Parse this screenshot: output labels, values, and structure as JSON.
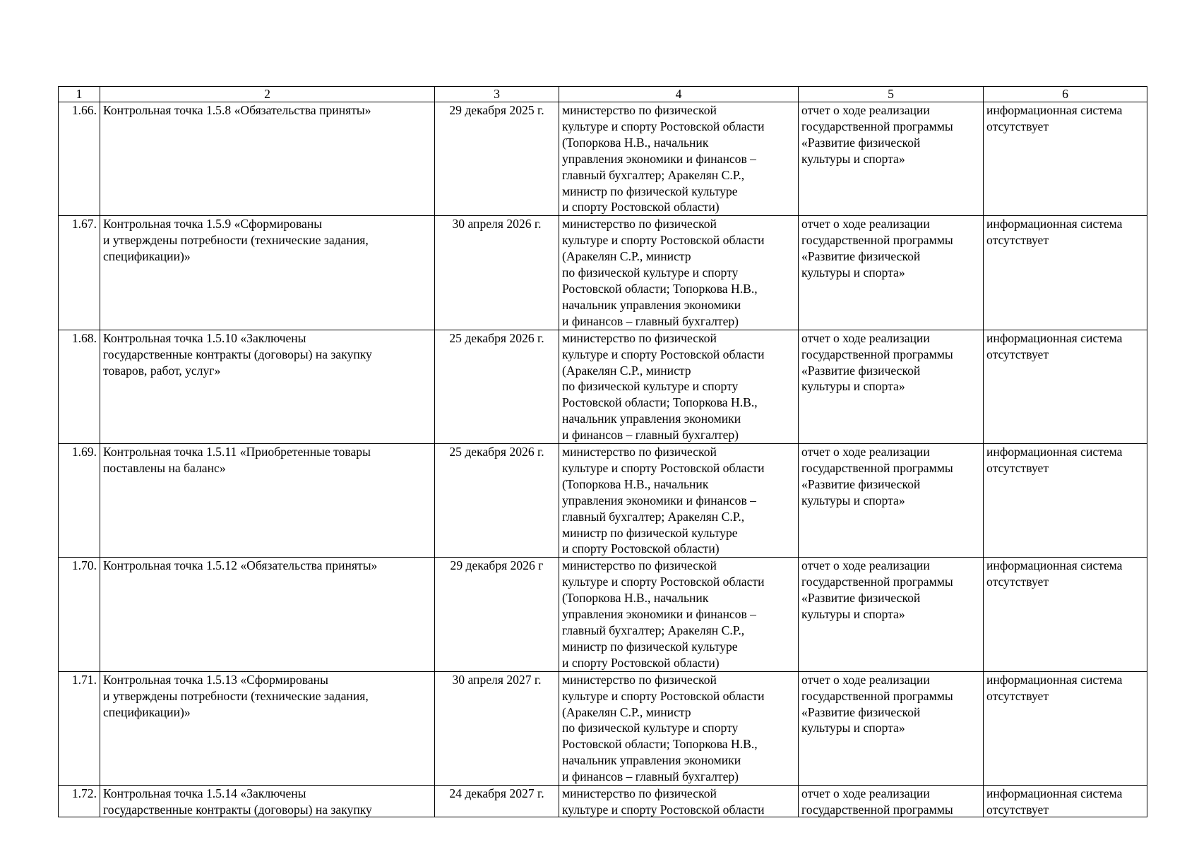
{
  "table": {
    "headers": [
      "1",
      "2",
      "3",
      "4",
      "5",
      "6"
    ],
    "rows": [
      {
        "num": "1.66.",
        "name": "Контрольная точка 1.5.8 «Обязательства приняты»",
        "date": "29 декабря 2025 г.",
        "responsible": "министерство по физической\nкультуре и спорту Ростовской области\n(Топоркова Н.В., начальник\nуправления экономики и финансов –\nглавный бухгалтер; Аракелян С.Р.,\nминистр по физической культуре\nи спорту Ростовской области)",
        "document": "отчет о ходе реализации\nгосударственной программы\n«Развитие физической\nкультуры и спорта»",
        "system": "информационная система\nотсутствует"
      },
      {
        "num": "1.67.",
        "name": "Контрольная точка 1.5.9 «Сформированы\nи утверждены потребности (технические задания,\nспецификации)»",
        "date": "30 апреля 2026 г.",
        "responsible": "министерство по физической\nкультуре и спорту Ростовской области\n(Аракелян С.Р., министр\nпо физической культуре и спорту\nРостовской области; Топоркова Н.В.,\nначальник управления экономики\nи финансов – главный бухгалтер)",
        "document": "отчет о ходе реализации\nгосударственной программы\n«Развитие физической\nкультуры и спорта»",
        "system": "информационная система\nотсутствует"
      },
      {
        "num": "1.68.",
        "name": "Контрольная точка 1.5.10 «Заключены\nгосударственные контракты (договоры) на закупку\nтоваров, работ, услуг»",
        "date": "25 декабря 2026 г.",
        "responsible": "министерство по физической\nкультуре и спорту Ростовской области\n(Аракелян С.Р., министр\nпо физической культуре и спорту\nРостовской области; Топоркова Н.В.,\nначальник управления экономики\nи финансов – главный бухгалтер)",
        "document": "отчет о ходе реализации\nгосударственной программы\n«Развитие физической\nкультуры и спорта»",
        "system": "информационная система\nотсутствует"
      },
      {
        "num": "1.69.",
        "name": "Контрольная точка 1.5.11 «Приобретенные товары\nпоставлены на баланс»",
        "date": "25 декабря 2026 г.",
        "responsible": "министерство по физической\nкультуре и спорту Ростовской области\n(Топоркова Н.В., начальник\nуправления экономики и финансов –\nглавный бухгалтер; Аракелян С.Р.,\nминистр по физической культуре\nи спорту Ростовской области)",
        "document": "отчет о ходе реализации\nгосударственной программы\n«Развитие физической\nкультуры и спорта»",
        "system": "информационная система\nотсутствует"
      },
      {
        "num": "1.70.",
        "name": "Контрольная точка 1.5.12 «Обязательства приняты»",
        "date": "29 декабря 2026 г",
        "responsible": "министерство по физической\nкультуре и спорту Ростовской области\n(Топоркова Н.В., начальник\nуправления экономики и финансов –\nглавный бухгалтер; Аракелян С.Р.,\nминистр по физической культуре\nи спорту Ростовской области)",
        "document": "отчет о ходе реализации\nгосударственной программы\n«Развитие физической\nкультуры и спорта»",
        "system": "информационная система\nотсутствует"
      },
      {
        "num": "1.71.",
        "name": "Контрольная точка 1.5.13 «Сформированы\nи утверждены потребности (технические задания,\nспецификации)»",
        "date": "30 апреля 2027 г.",
        "responsible": "министерство по физической\nкультуре и спорту Ростовской области\n(Аракелян С.Р., министр\nпо физической культуре и спорту\nРостовской области; Топоркова Н.В.,\nначальник управления экономики\nи финансов – главный бухгалтер)",
        "document": "отчет о ходе реализации\nгосударственной программы\n«Развитие физической\nкультуры и спорта»",
        "system": "информационная система\nотсутствует"
      },
      {
        "num": "1.72.",
        "name": "Контрольная точка 1.5.14 «Заключены\nгосударственные контракты (договоры) на закупку",
        "date": "24 декабря 2027 г.",
        "responsible": "министерство по физической\nкультуре и спорту Ростовской области",
        "document": "отчет о ходе реализации\nгосударственной программы",
        "system": "информационная система\nотсутствует"
      }
    ]
  }
}
